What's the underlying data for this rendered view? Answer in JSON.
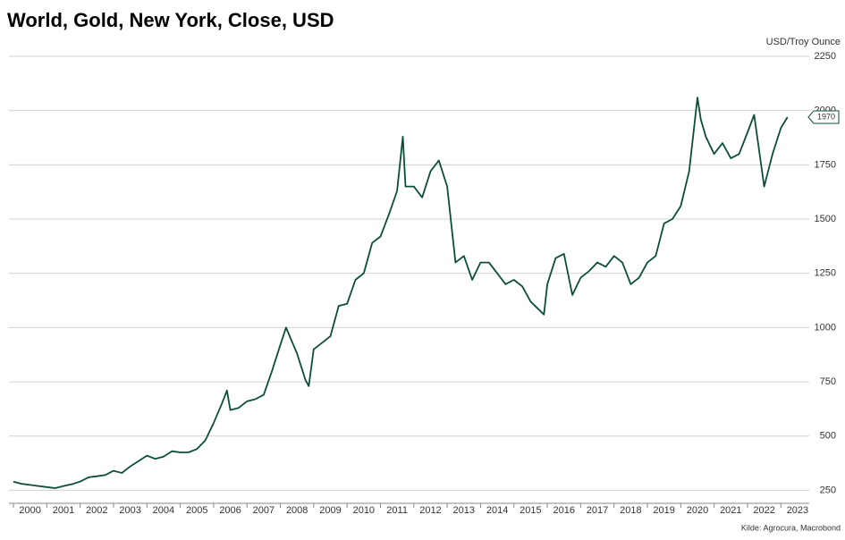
{
  "chart_data": {
    "type": "line",
    "title": "World, Gold, New York, Close, USD",
    "y_label": "USD/Troy Ounce",
    "source": "Kilde: Agrocura, Macrobond",
    "color": "#0b4f36",
    "grid": true,
    "x": [
      2000,
      2000.25,
      2000.5,
      2000.75,
      2001,
      2001.25,
      2001.5,
      2001.75,
      2002,
      2002.25,
      2002.5,
      2002.75,
      2003,
      2003.25,
      2003.5,
      2003.75,
      2004,
      2004.25,
      2004.5,
      2004.75,
      2005,
      2005.25,
      2005.5,
      2005.75,
      2006,
      2006.25,
      2006.4,
      2006.5,
      2006.75,
      2007,
      2007.25,
      2007.5,
      2007.75,
      2008,
      2008.17,
      2008.5,
      2008.75,
      2008.85,
      2009,
      2009.25,
      2009.5,
      2009.75,
      2010,
      2010.25,
      2010.5,
      2010.75,
      2011,
      2011.25,
      2011.5,
      2011.67,
      2011.75,
      2012,
      2012.25,
      2012.5,
      2012.75,
      2013,
      2013.25,
      2013.5,
      2013.75,
      2014,
      2014.25,
      2014.5,
      2014.75,
      2015,
      2015.25,
      2015.5,
      2015.9,
      2016,
      2016.25,
      2016.5,
      2016.75,
      2017,
      2017.25,
      2017.5,
      2017.75,
      2018,
      2018.25,
      2018.5,
      2018.75,
      2019,
      2019.25,
      2019.5,
      2019.75,
      2020,
      2020.25,
      2020.5,
      2020.6,
      2020.75,
      2021,
      2021.25,
      2021.5,
      2021.75,
      2022,
      2022.2,
      2022.5,
      2022.75,
      2023,
      2023.2
    ],
    "values": [
      290,
      280,
      275,
      270,
      265,
      260,
      270,
      278,
      290,
      310,
      315,
      320,
      340,
      330,
      360,
      385,
      410,
      395,
      405,
      430,
      425,
      425,
      440,
      480,
      560,
      650,
      710,
      620,
      630,
      660,
      670,
      690,
      800,
      920,
      1000,
      880,
      760,
      730,
      900,
      930,
      960,
      1100,
      1110,
      1220,
      1250,
      1390,
      1420,
      1520,
      1630,
      1880,
      1650,
      1650,
      1600,
      1720,
      1770,
      1650,
      1300,
      1330,
      1220,
      1300,
      1300,
      1250,
      1200,
      1220,
      1190,
      1120,
      1060,
      1200,
      1320,
      1340,
      1150,
      1230,
      1260,
      1300,
      1280,
      1330,
      1300,
      1200,
      1230,
      1300,
      1330,
      1480,
      1500,
      1560,
      1720,
      2060,
      1960,
      1880,
      1800,
      1850,
      1780,
      1800,
      1900,
      1980,
      1650,
      1800,
      1920,
      1970
    ],
    "xlim": [
      2000,
      2023.85
    ],
    "xticks": [
      2000,
      2001,
      2002,
      2003,
      2004,
      2005,
      2006,
      2007,
      2008,
      2009,
      2010,
      2011,
      2012,
      2013,
      2014,
      2015,
      2016,
      2017,
      2018,
      2019,
      2020,
      2021,
      2022,
      2023
    ],
    "ylim": [
      190,
      2250
    ],
    "yticks": [
      250,
      500,
      750,
      1000,
      1250,
      1500,
      1750,
      2000,
      2250
    ],
    "last_value": 1970
  }
}
